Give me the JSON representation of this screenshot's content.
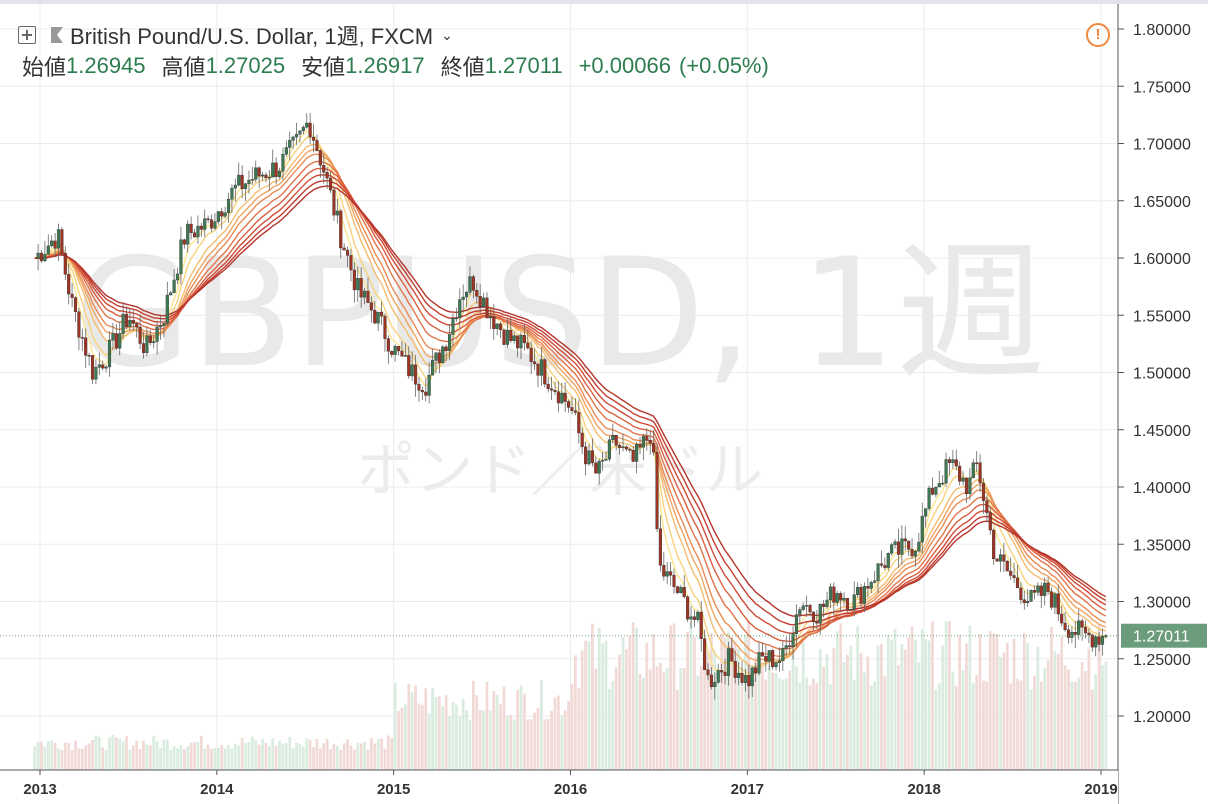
{
  "header": {
    "symbol_title": "British Pound/U.S. Dollar, 1週, FXCM",
    "expand_icon": "plus-square-icon",
    "flag_icon": "flag-icon",
    "dropdown_icon": "chevron-down-icon",
    "warning_icon": "exclamation-circle-icon"
  },
  "ohlc": {
    "open_label": "始値",
    "open_value": "1.26945",
    "high_label": "高値",
    "high_value": "1.27025",
    "low_label": "安値",
    "low_value": "1.26917",
    "close_label": "終値",
    "close_value": "1.27011",
    "change": "+0.00066",
    "change_pct": "(+0.05%)"
  },
  "watermark": {
    "main": "GBPUSD, 1週",
    "sub": "ポンド／米ドル"
  },
  "colors": {
    "up": "#3d7a54",
    "down": "#a03424",
    "last_price_bg": "#6b9d7c",
    "warning": "#f0883e"
  },
  "chart_data": {
    "type": "line",
    "chart_style": "candlestick with guppy moving averages and volume",
    "y_axis": {
      "ticks": [
        "1.80000",
        "1.75000",
        "1.70000",
        "1.65000",
        "1.60000",
        "1.55000",
        "1.50000",
        "1.45000",
        "1.40000",
        "1.35000",
        "1.30000",
        "1.25000",
        "1.20000"
      ],
      "range": [
        1.16,
        1.82
      ]
    },
    "x_axis": {
      "ticks": [
        "2013",
        "2014",
        "2015",
        "2016",
        "2017",
        "2018",
        "2019"
      ]
    },
    "last_price": "1.27011",
    "series": [
      {
        "values_x": [
          2012.97,
          2013.1,
          2013.18,
          2013.3,
          2013.4,
          2013.5,
          2013.6,
          2013.7,
          2013.82,
          2013.95,
          2014.1,
          2014.2,
          2014.35,
          2014.45,
          2014.52,
          2014.6,
          2014.7,
          2014.8,
          2014.9,
          2015.0,
          2015.1,
          2015.18,
          2015.3,
          2015.38,
          2015.45,
          2015.55,
          2015.65,
          2015.75,
          2015.85,
          2016.0,
          2016.08,
          2016.15,
          2016.25,
          2016.35,
          2016.46,
          2016.5,
          2016.6,
          2016.72,
          2016.78,
          2016.9,
          2017.0,
          2017.08,
          2017.2,
          2017.3,
          2017.4,
          2017.5,
          2017.6,
          2017.7,
          2017.8,
          2017.95,
          2018.05,
          2018.15,
          2018.25,
          2018.3,
          2018.4,
          2018.5,
          2018.6,
          2018.7,
          2018.8,
          2018.9,
          2018.97
        ],
        "values_y": [
          1.6,
          1.62,
          1.56,
          1.5,
          1.52,
          1.55,
          1.52,
          1.55,
          1.62,
          1.63,
          1.66,
          1.67,
          1.68,
          1.7,
          1.72,
          1.68,
          1.62,
          1.57,
          1.55,
          1.52,
          1.5,
          1.49,
          1.53,
          1.57,
          1.58,
          1.55,
          1.53,
          1.52,
          1.5,
          1.47,
          1.43,
          1.41,
          1.44,
          1.42,
          1.45,
          1.33,
          1.31,
          1.28,
          1.23,
          1.25,
          1.23,
          1.25,
          1.25,
          1.3,
          1.29,
          1.31,
          1.3,
          1.32,
          1.34,
          1.35,
          1.4,
          1.42,
          1.4,
          1.42,
          1.34,
          1.32,
          1.3,
          1.31,
          1.28,
          1.27,
          1.27
        ]
      }
    ]
  }
}
